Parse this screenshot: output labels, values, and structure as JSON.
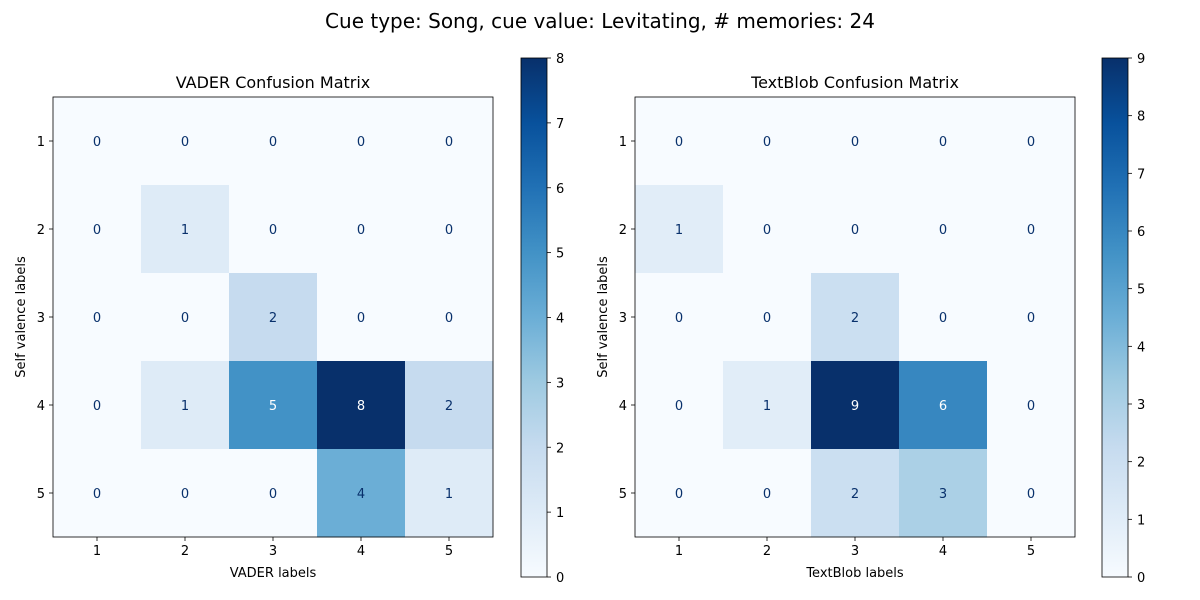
{
  "suptitle": "Cue type: Song, cue value: Levitating, # memories: 24",
  "chart_data": [
    {
      "type": "heatmap",
      "title": "VADER Confusion Matrix",
      "xlabel": "VADER labels",
      "ylabel": "Self valence labels",
      "x_ticks": [
        "1",
        "2",
        "3",
        "4",
        "5"
      ],
      "y_ticks": [
        "1",
        "2",
        "3",
        "4",
        "5"
      ],
      "matrix": [
        [
          0,
          0,
          0,
          0,
          0
        ],
        [
          0,
          1,
          0,
          0,
          0
        ],
        [
          0,
          0,
          2,
          0,
          0
        ],
        [
          0,
          1,
          5,
          8,
          2
        ],
        [
          0,
          0,
          0,
          4,
          1
        ]
      ],
      "colorscale": "Blues",
      "colorbar_range": [
        0,
        8
      ],
      "colorbar_ticks": [
        "0",
        "1",
        "2",
        "3",
        "4",
        "5",
        "6",
        "7",
        "8"
      ]
    },
    {
      "type": "heatmap",
      "title": "TextBlob Confusion Matrix",
      "xlabel": "TextBlob labels",
      "ylabel": "Self valence labels",
      "x_ticks": [
        "1",
        "2",
        "3",
        "4",
        "5"
      ],
      "y_ticks": [
        "1",
        "2",
        "3",
        "4",
        "5"
      ],
      "matrix": [
        [
          0,
          0,
          0,
          0,
          0
        ],
        [
          1,
          0,
          0,
          0,
          0
        ],
        [
          0,
          0,
          2,
          0,
          0
        ],
        [
          0,
          1,
          9,
          6,
          0
        ],
        [
          0,
          0,
          2,
          3,
          0
        ]
      ],
      "colorscale": "Blues",
      "colorbar_range": [
        0,
        9
      ],
      "colorbar_ticks": [
        "0",
        "1",
        "2",
        "3",
        "4",
        "5",
        "6",
        "7",
        "8",
        "9"
      ]
    }
  ]
}
